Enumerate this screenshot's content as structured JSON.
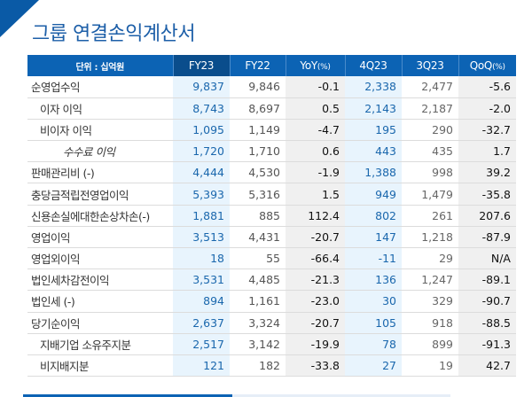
{
  "title": "그룹 연결손익계산서",
  "table": {
    "headers": [
      "단위 : 십억원",
      "FY23",
      "FY22",
      "YoY",
      "4Q23",
      "3Q23",
      "QoQ"
    ],
    "header_suffix": {
      "yoy": "(%)",
      "qoq": "(%)"
    },
    "rows": [
      {
        "label": "순영업수익",
        "indent": 0,
        "fy23": "9,837",
        "fy22": "9,846",
        "yoy": "-0.1",
        "q4": "2,338",
        "q3": "2,477",
        "qoq": "-5.6"
      },
      {
        "label": "이자 이익",
        "indent": 1,
        "fy23": "8,743",
        "fy22": "8,697",
        "yoy": "0.5",
        "q4": "2,143",
        "q3": "2,187",
        "qoq": "-2.0"
      },
      {
        "label": "비이자 이익",
        "indent": 1,
        "fy23": "1,095",
        "fy22": "1,149",
        "yoy": "-4.7",
        "q4": "195",
        "q3": "290",
        "qoq": "-32.7"
      },
      {
        "label": "수수료 이익",
        "indent": 2,
        "fy23": "1,720",
        "fy22": "1,710",
        "yoy": "0.6",
        "q4": "443",
        "q3": "435",
        "qoq": "1.7"
      },
      {
        "label": "판매관리비 (-)",
        "indent": 0,
        "fy23": "4,444",
        "fy22": "4,530",
        "yoy": "-1.9",
        "q4": "1,388",
        "q3": "998",
        "qoq": "39.2"
      },
      {
        "label": "충당금적립전영업이익",
        "indent": 0,
        "fy23": "5,393",
        "fy22": "5,316",
        "yoy": "1.5",
        "q4": "949",
        "q3": "1,479",
        "qoq": "-35.8"
      },
      {
        "label": "신용손실에대한손상차손(-)",
        "indent": 0,
        "fy23": "1,881",
        "fy22": "885",
        "yoy": "112.4",
        "q4": "802",
        "q3": "261",
        "qoq": "207.6"
      },
      {
        "label": "영업이익",
        "indent": 0,
        "fy23": "3,513",
        "fy22": "4,431",
        "yoy": "-20.7",
        "q4": "147",
        "q3": "1,218",
        "qoq": "-87.9"
      },
      {
        "label": "영업외이익",
        "indent": 0,
        "fy23": "18",
        "fy22": "55",
        "yoy": "-66.4",
        "q4": "-11",
        "q3": "29",
        "qoq": "N/A"
      },
      {
        "label": "법인세차감전이익",
        "indent": 0,
        "fy23": "3,531",
        "fy22": "4,485",
        "yoy": "-21.3",
        "q4": "136",
        "q3": "1,247",
        "qoq": "-89.1"
      },
      {
        "label": "법인세 (-)",
        "indent": 0,
        "fy23": "894",
        "fy22": "1,161",
        "yoy": "-23.0",
        "q4": "30",
        "q3": "329",
        "qoq": "-90.7"
      },
      {
        "label": "당기순이익",
        "indent": 0,
        "fy23": "2,637",
        "fy22": "3,324",
        "yoy": "-20.7",
        "q4": "105",
        "q3": "918",
        "qoq": "-88.5"
      },
      {
        "label": "지배기업 소유주지분",
        "indent": 1,
        "fy23": "2,517",
        "fy22": "3,142",
        "yoy": "-19.9",
        "q4": "78",
        "q3": "899",
        "qoq": "-91.3"
      },
      {
        "label": "비지배지분",
        "indent": 1,
        "fy23": "121",
        "fy22": "182",
        "yoy": "-33.8",
        "q4": "27",
        "q3": "19",
        "qoq": "42.7"
      }
    ]
  },
  "colors": {
    "header_bg": "#0c63b4",
    "header_highlight_bg": "#0a4d8c",
    "highlight_col_bg": "#e8f4fd",
    "highlight_text": "#1a67ad",
    "pct_col_bg": "#f0f0f0",
    "title": "#1d5fa8"
  }
}
